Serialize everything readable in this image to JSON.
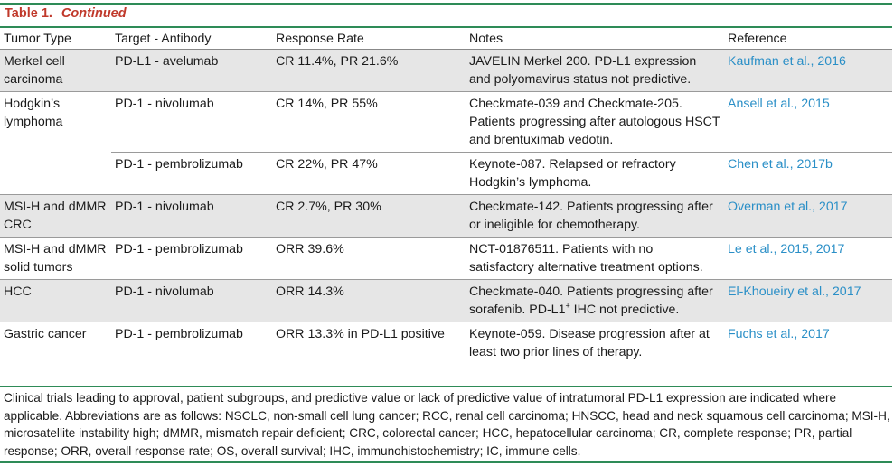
{
  "table": {
    "label": "Table 1.",
    "continued": "Continued",
    "headers": [
      "Tumor Type",
      "Target - Antibody",
      "Response Rate",
      "Notes",
      "Reference"
    ],
    "rows": [
      {
        "tumor": "Merkel cell carcinoma",
        "target": "PD-L1 - avelumab",
        "response": "CR 11.4%, PR 21.6%",
        "notes": "JAVELIN Merkel 200. PD-L1 expression and polyomavirus status not predictive.",
        "ref": "Kaufman et al., 2016"
      },
      {
        "tumor": "Hodgkin’s lymphoma",
        "target": "PD-1 - nivolumab",
        "response": "CR 14%, PR 55%",
        "notes": "Checkmate-039 and Checkmate-205. Patients progressing after autologous HSCT and brentuximab vedotin.",
        "ref": "Ansell et al., 2015"
      },
      {
        "tumor": "",
        "target": "PD-1 - pembrolizumab",
        "response": "CR 22%, PR 47%",
        "notes": "Keynote-087. Relapsed or refractory Hodgkin’s lymphoma.",
        "ref": "Chen et al., 2017b"
      },
      {
        "tumor": "MSI-H and dMMR CRC",
        "target": "PD-1 - nivolumab",
        "response": "CR 2.7%, PR 30%",
        "notes": "Checkmate-142. Patients progressing after or ineligible for chemotherapy.",
        "ref": "Overman et al., 2017"
      },
      {
        "tumor": "MSI-H and dMMR solid tumors",
        "target": "PD-1 - pembrolizumab",
        "response": "ORR 39.6%",
        "notes": "NCT-01876511. Patients with no satisfactory alternative treatment options.",
        "ref": "Le et al., 2015, 2017"
      },
      {
        "tumor": "HCC",
        "target": "PD-1 - nivolumab",
        "response": "ORR 14.3%",
        "notes_pre": "Checkmate-040. Patients progressing after sorafenib. PD-L1",
        "notes_sup": "+",
        "notes_post": " IHC not predictive.",
        "ref": "El-Khoueiry et al., 2017"
      },
      {
        "tumor": "Gastric cancer",
        "target": "PD-1 - pembrolizumab",
        "response": "ORR 13.3% in PD-L1 positive",
        "notes": "Keynote-059. Disease progression after at least two prior lines of therapy.",
        "ref": "Fuchs et al., 2017"
      }
    ],
    "footnote": "Clinical trials leading to approval, patient subgroups, and predictive value or lack of predictive value of intratumoral PD-L1 expression are indicated where applicable. Abbreviations are as follows: NSCLC, non-small cell lung cancer; RCC, renal cell carcinoma; HNSCC, head and neck squamous cell carcinoma; MSI-H, microsatellite instability high; dMMR, mismatch repair deficient; CRC, colorectal cancer; HCC, hepatocellular carcinoma; CR, complete response; PR, partial response; ORR, overall response rate; OS, overall survival; IHC, immunohistochemistry; IC, immune cells.",
    "colors": {
      "title": "#c0392b",
      "rules": "#2e8b57",
      "link": "#2a8fc7",
      "shade": "#e6e6e6"
    }
  }
}
